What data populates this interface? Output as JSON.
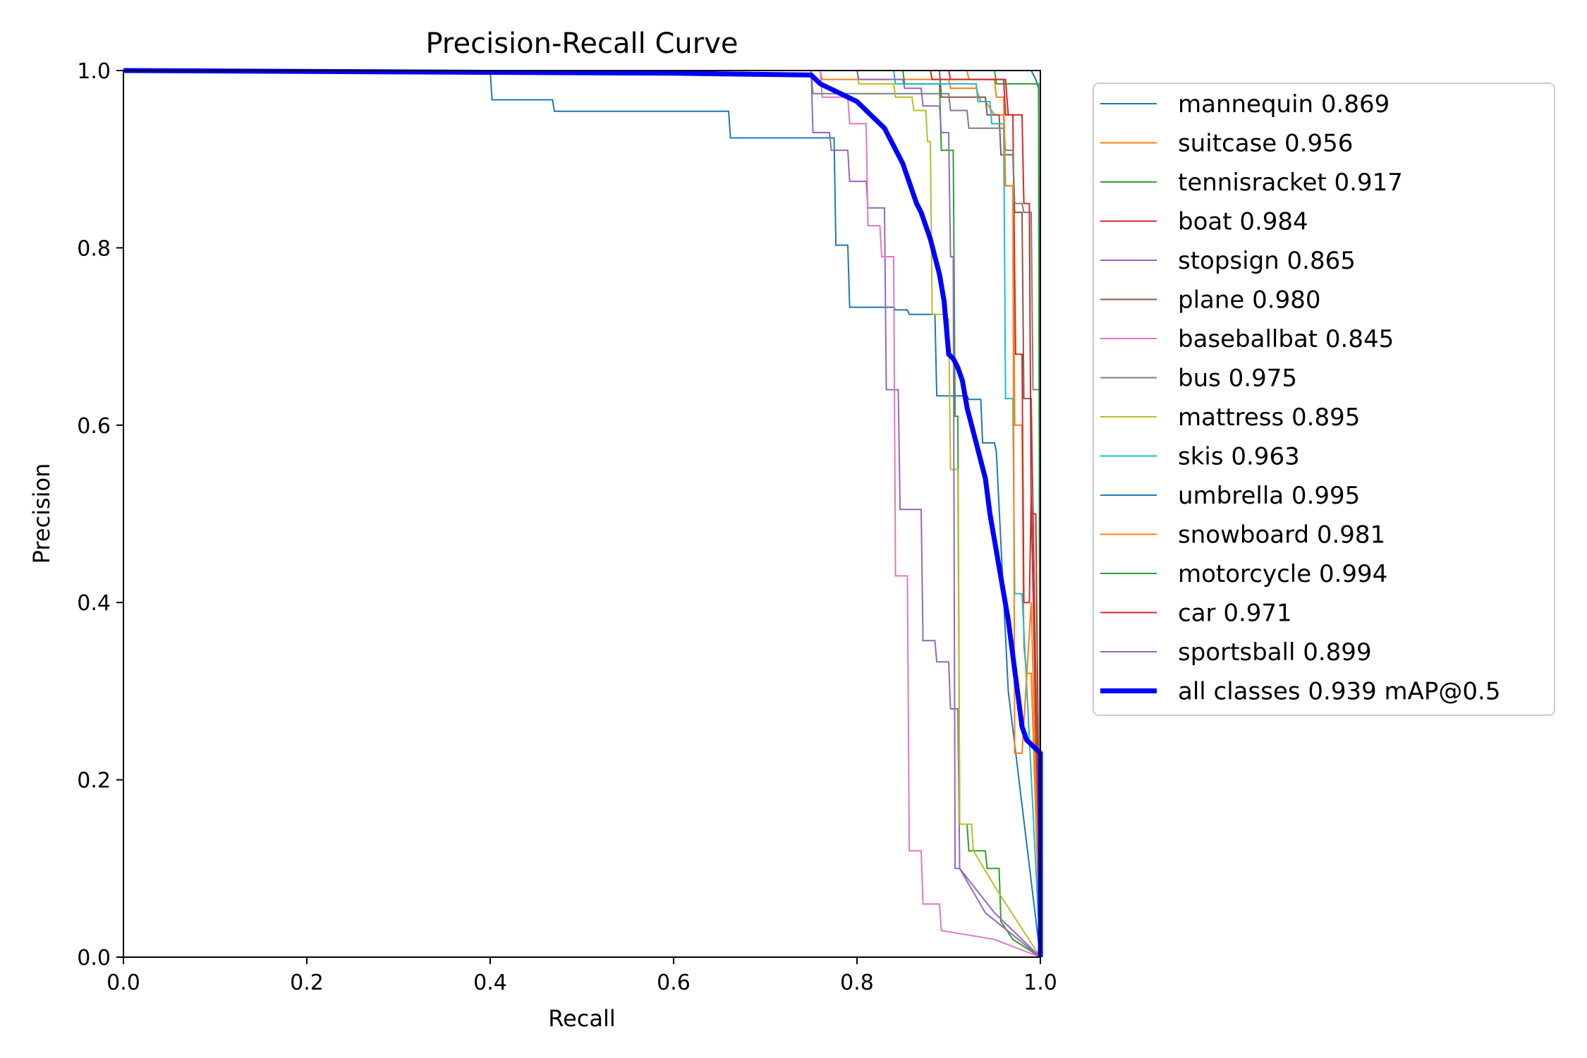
{
  "chart_data": {
    "type": "line",
    "title": "Precision-Recall Curve",
    "xlabel": "Recall",
    "ylabel": "Precision",
    "xlim": [
      0,
      1
    ],
    "ylim": [
      0,
      1
    ],
    "xticks": [
      "0.0",
      "0.2",
      "0.4",
      "0.6",
      "0.8",
      "1.0"
    ],
    "yticks": [
      "0.0",
      "0.2",
      "0.4",
      "0.6",
      "0.8",
      "1.0"
    ],
    "grid": false,
    "legend_position": "outside-right",
    "series": [
      {
        "name": "mannequin",
        "label": "mannequin 0.869",
        "color": "#1f77b4",
        "x": [
          0,
          0.4,
          0.402,
          0.468,
          0.47,
          0.66,
          0.662,
          0.775,
          0.777,
          0.79,
          0.792,
          0.84,
          0.842,
          0.855,
          0.857,
          0.885,
          0.887,
          0.92,
          0.922,
          0.935,
          0.937,
          0.95,
          0.952,
          0.965,
          1.0
        ],
        "y": [
          1.0,
          1.0,
          0.967,
          0.967,
          0.954,
          0.954,
          0.924,
          0.924,
          0.803,
          0.803,
          0.733,
          0.733,
          0.73,
          0.73,
          0.725,
          0.725,
          0.633,
          0.633,
          0.629,
          0.629,
          0.58,
          0.58,
          0.57,
          0.3,
          0.0
        ]
      },
      {
        "name": "suitcase",
        "label": "suitcase 0.956",
        "color": "#ff7f0e",
        "x": [
          0,
          0.76,
          0.762,
          0.9,
          0.902,
          0.93,
          0.935,
          0.94,
          0.95,
          0.96,
          0.962,
          0.97,
          0.972,
          0.98,
          0.982,
          0.985,
          0.99,
          1.0
        ],
        "y": [
          1.0,
          1.0,
          0.99,
          0.99,
          0.98,
          0.98,
          0.965,
          0.965,
          0.95,
          0.95,
          0.87,
          0.87,
          0.6,
          0.6,
          0.35,
          0.32,
          0.32,
          0.0
        ]
      },
      {
        "name": "tennisracket",
        "label": "tennisracket 0.917",
        "color": "#2ca02c",
        "x": [
          0,
          0.85,
          0.852,
          0.89,
          0.892,
          0.905,
          0.907,
          0.91,
          0.912,
          0.92,
          0.922,
          0.94,
          0.942,
          0.955,
          0.957,
          0.97,
          1.0
        ],
        "y": [
          1.0,
          1.0,
          0.985,
          0.985,
          0.91,
          0.91,
          0.61,
          0.61,
          0.15,
          0.15,
          0.12,
          0.12,
          0.1,
          0.1,
          0.04,
          0.02,
          0.0
        ]
      },
      {
        "name": "boat",
        "label": "boat 0.984",
        "color": "#d62728",
        "x": [
          0,
          0.88,
          0.882,
          0.962,
          0.965,
          0.97,
          0.973,
          0.98,
          0.982,
          0.988,
          0.99,
          1.0
        ],
        "y": [
          1.0,
          1.0,
          0.99,
          0.99,
          0.95,
          0.95,
          0.68,
          0.68,
          0.4,
          0.4,
          0.52,
          0.0
        ]
      },
      {
        "name": "stopsign",
        "label": "stopsign 0.865",
        "color": "#9467bd",
        "x": [
          0,
          0.75,
          0.752,
          0.77,
          0.772,
          0.79,
          0.792,
          0.81,
          0.812,
          0.83,
          0.832,
          0.845,
          0.847,
          0.87,
          0.872,
          0.885,
          0.887,
          0.9,
          0.902,
          0.91,
          0.912,
          0.94,
          1.0
        ],
        "y": [
          1.0,
          1.0,
          0.93,
          0.93,
          0.91,
          0.91,
          0.875,
          0.875,
          0.845,
          0.845,
          0.64,
          0.64,
          0.505,
          0.505,
          0.357,
          0.357,
          0.333,
          0.333,
          0.28,
          0.28,
          0.1,
          0.05,
          0.0
        ]
      },
      {
        "name": "plane",
        "label": "plane 0.980",
        "color": "#8c564b",
        "x": [
          0,
          0.89,
          0.892,
          0.94,
          0.942,
          0.955,
          0.957,
          0.97,
          0.972,
          0.98,
          0.982,
          0.99,
          1.0
        ],
        "y": [
          1.0,
          1.0,
          0.97,
          0.97,
          0.95,
          0.95,
          0.905,
          0.905,
          0.84,
          0.84,
          0.63,
          0.63,
          0.0
        ]
      },
      {
        "name": "baseballbat",
        "label": "baseballbat 0.845",
        "color": "#e377c2",
        "x": [
          0,
          0.76,
          0.762,
          0.79,
          0.792,
          0.81,
          0.812,
          0.825,
          0.827,
          0.84,
          0.842,
          0.855,
          0.857,
          0.87,
          0.872,
          0.89,
          0.892,
          0.95,
          1.0
        ],
        "y": [
          1.0,
          1.0,
          0.97,
          0.97,
          0.94,
          0.94,
          0.825,
          0.825,
          0.79,
          0.79,
          0.43,
          0.43,
          0.12,
          0.12,
          0.06,
          0.06,
          0.03,
          0.02,
          0.0
        ]
      },
      {
        "name": "bus",
        "label": "bus 0.975",
        "color": "#7f7f7f",
        "x": [
          0,
          0.75,
          0.752,
          0.9,
          0.902,
          0.92,
          0.922,
          0.96,
          0.962,
          0.97,
          0.972,
          0.98,
          0.982,
          0.99,
          0.992,
          1.0
        ],
        "y": [
          1.0,
          1.0,
          0.974,
          0.974,
          0.955,
          0.955,
          0.935,
          0.935,
          0.91,
          0.91,
          0.85,
          0.85,
          0.84,
          0.84,
          0.64,
          0.64
        ]
      },
      {
        "name": "mattress",
        "label": "mattress 0.895",
        "color": "#bcbd22",
        "x": [
          0,
          0.8,
          0.802,
          0.84,
          0.842,
          0.86,
          0.862,
          0.875,
          0.877,
          0.88,
          0.882,
          0.895,
          0.897,
          0.9,
          0.902,
          0.91,
          0.912,
          0.925,
          0.927,
          0.95,
          1.0
        ],
        "y": [
          1.0,
          1.0,
          0.985,
          0.985,
          0.97,
          0.97,
          0.955,
          0.955,
          0.92,
          0.92,
          0.725,
          0.725,
          0.72,
          0.72,
          0.55,
          0.55,
          0.15,
          0.15,
          0.12,
          0.08,
          0.0
        ]
      },
      {
        "name": "skis",
        "label": "skis 0.963",
        "color": "#17becf",
        "x": [
          0,
          0.84,
          0.842,
          0.93,
          0.932,
          0.945,
          0.947,
          0.96,
          0.962,
          0.97,
          0.972,
          0.98,
          1.0
        ],
        "y": [
          1.0,
          1.0,
          0.985,
          0.985,
          0.965,
          0.965,
          0.94,
          0.94,
          0.63,
          0.63,
          0.41,
          0.41,
          0.0
        ]
      },
      {
        "name": "umbrella",
        "label": "umbrella 0.995",
        "color": "#1f77b4",
        "x": [
          0,
          0.99,
          0.995,
          0.998,
          1.0
        ],
        "y": [
          1.0,
          1.0,
          0.99,
          0.98,
          0.0
        ]
      },
      {
        "name": "snowboard",
        "label": "snowboard 0.981",
        "color": "#ff7f0e",
        "x": [
          0,
          0.92,
          0.922,
          0.95,
          0.952,
          0.96,
          0.962,
          0.97,
          0.972,
          0.98,
          0.99,
          1.0
        ],
        "y": [
          1.0,
          1.0,
          0.99,
          0.99,
          0.97,
          0.97,
          0.87,
          0.87,
          0.23,
          0.23,
          0.4,
          0.0
        ]
      },
      {
        "name": "motorcycle",
        "label": "motorcycle 0.994",
        "color": "#2ca02c",
        "x": [
          0,
          0.95,
          0.952,
          0.998,
          1.0
        ],
        "y": [
          1.0,
          1.0,
          0.985,
          0.985,
          0.0
        ]
      },
      {
        "name": "car",
        "label": "car 0.971",
        "color": "#d62728",
        "x": [
          0,
          0.9,
          0.902,
          0.96,
          0.962,
          0.98,
          0.982,
          0.988,
          0.99,
          0.995,
          1.0
        ],
        "y": [
          1.0,
          1.0,
          0.99,
          0.99,
          0.95,
          0.95,
          0.85,
          0.85,
          0.5,
          0.5,
          0.0
        ]
      },
      {
        "name": "sportsball",
        "label": "sportsball 0.899",
        "color": "#9467bd",
        "x": [
          0,
          0.8,
          0.802,
          0.85,
          0.852,
          0.87,
          0.872,
          0.89,
          0.892,
          0.9,
          0.902,
          0.905,
          0.907,
          0.91,
          0.912,
          0.95,
          1.0
        ],
        "y": [
          1.0,
          1.0,
          0.99,
          0.99,
          0.98,
          0.98,
          0.96,
          0.96,
          0.93,
          0.93,
          0.79,
          0.79,
          0.1,
          0.1,
          0.1,
          0.05,
          0.0
        ]
      },
      {
        "name": "all classes",
        "label": "all classes 0.939 mAP@0.5",
        "color": "#0000ff",
        "bold": true,
        "x": [
          0,
          0.6,
          0.75,
          0.76,
          0.77,
          0.78,
          0.79,
          0.8,
          0.81,
          0.82,
          0.83,
          0.835,
          0.84,
          0.845,
          0.85,
          0.855,
          0.86,
          0.865,
          0.87,
          0.875,
          0.88,
          0.885,
          0.89,
          0.895,
          0.9,
          0.905,
          0.91,
          0.915,
          0.92,
          0.925,
          0.93,
          0.935,
          0.94,
          0.945,
          0.95,
          0.955,
          0.96,
          0.965,
          0.97,
          0.975,
          0.98,
          0.985,
          0.99,
          0.995,
          1.0,
          1.0
        ],
        "y": [
          1.0,
          0.997,
          0.995,
          0.985,
          0.98,
          0.975,
          0.97,
          0.965,
          0.955,
          0.945,
          0.935,
          0.925,
          0.915,
          0.905,
          0.895,
          0.88,
          0.865,
          0.85,
          0.84,
          0.825,
          0.81,
          0.79,
          0.77,
          0.74,
          0.68,
          0.675,
          0.665,
          0.65,
          0.62,
          0.6,
          0.58,
          0.56,
          0.54,
          0.5,
          0.47,
          0.44,
          0.41,
          0.38,
          0.34,
          0.3,
          0.26,
          0.245,
          0.24,
          0.235,
          0.23,
          0.0
        ]
      }
    ]
  }
}
